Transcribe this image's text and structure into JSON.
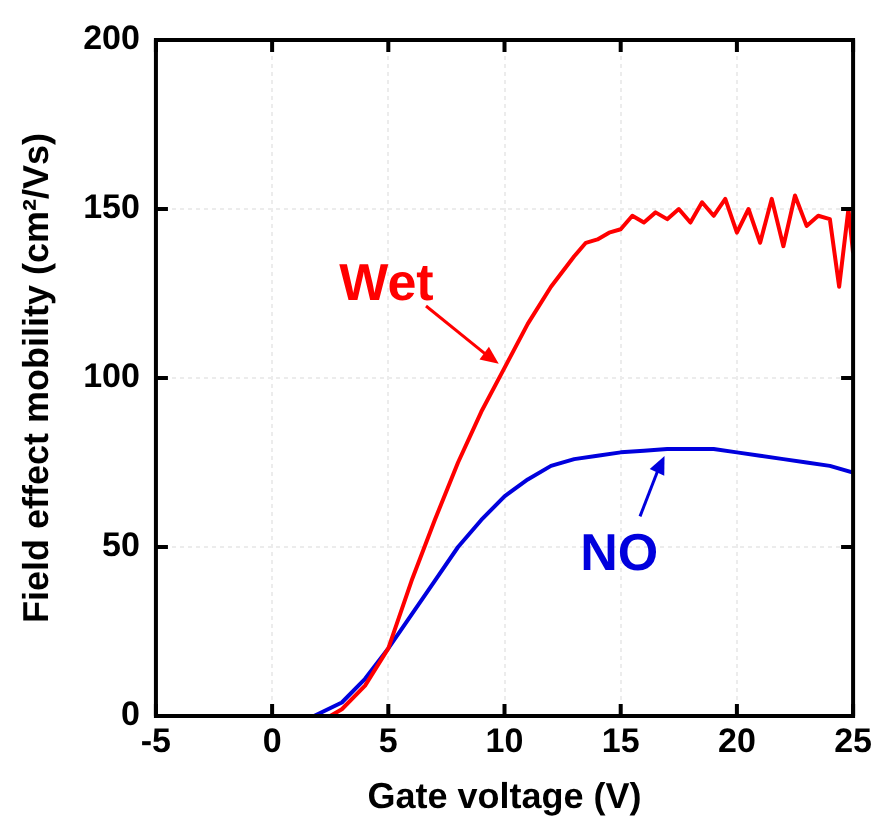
{
  "chart_data": {
    "type": "line",
    "xlabel": "Gate voltage (V)",
    "ylabel": "Field effect mobility (cm²/Vs)",
    "xlim": [
      -5,
      25
    ],
    "xticks": [
      -5,
      0,
      5,
      10,
      15,
      20,
      25
    ],
    "ylim": [
      0,
      200
    ],
    "yticks": [
      0,
      50,
      100,
      150,
      200
    ],
    "grid": true,
    "marker": "none",
    "line_style": "solid",
    "series": [
      {
        "name": "Wet",
        "color": "#ff0000",
        "x": [
          2.5,
          3,
          4,
          5,
          6,
          7,
          8,
          9,
          10,
          11,
          12,
          13,
          13.5,
          14,
          14.5,
          15,
          15.5,
          16,
          16.5,
          17,
          17.5,
          18,
          18.5,
          19,
          19.5,
          20,
          20.5,
          21,
          21.5,
          22,
          22.5,
          23,
          23.5,
          24,
          24.4,
          24.8,
          25
        ],
        "values": [
          0,
          2,
          9,
          20,
          40,
          58,
          75,
          90,
          103,
          116,
          127,
          136,
          140,
          141,
          143,
          144,
          148,
          146,
          149,
          147,
          150,
          146,
          152,
          148,
          153,
          143,
          150,
          140,
          153,
          139,
          154,
          145,
          148,
          147,
          127,
          150,
          137
        ]
      },
      {
        "name": "NO",
        "color": "#0000dd",
        "x": [
          1.8,
          3,
          4,
          5,
          6,
          7,
          8,
          9,
          10,
          11,
          12,
          13,
          14,
          15,
          16,
          17,
          18,
          19,
          20,
          21,
          22,
          23,
          24,
          25
        ],
        "values": [
          0,
          4,
          11,
          20,
          30,
          40,
          50,
          58,
          65,
          70,
          74,
          76,
          77,
          78,
          78.5,
          79,
          79,
          79,
          78,
          77,
          76,
          75,
          74,
          72
        ]
      }
    ]
  }
}
